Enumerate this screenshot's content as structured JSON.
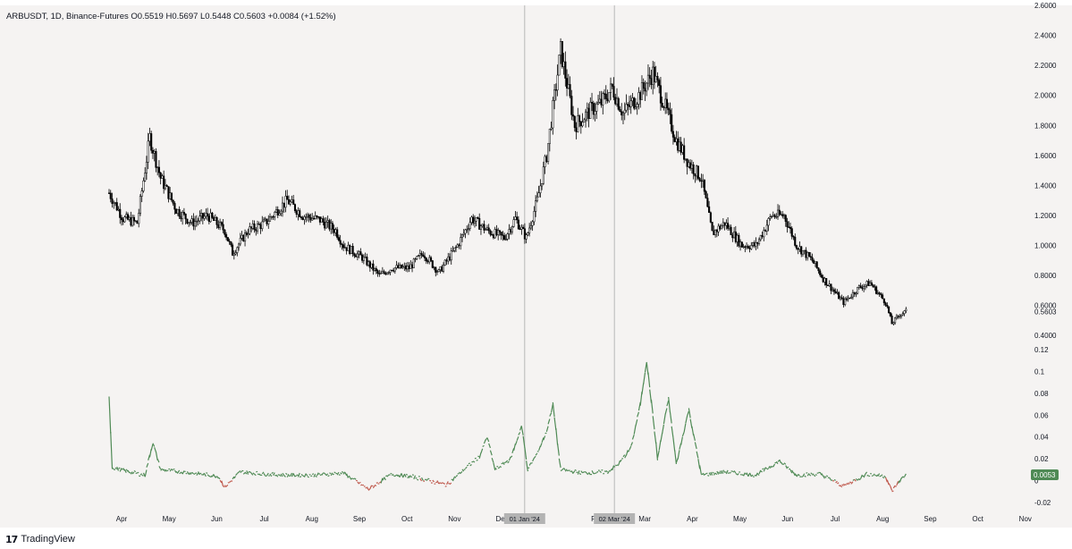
{
  "header": {
    "symbol": "ARBUSDT",
    "interval": "1D",
    "exchange": "Binance-Futures",
    "ohlc_text": "ARBUSDT, 1D, Binance-Futures  O0.5519  H0.5697  L0.5448  C0.5603  +0.0084 (+1.52%)"
  },
  "footer": {
    "brand": "TradingView",
    "logo": "17"
  },
  "colors": {
    "background": "#f5f3f2",
    "candle": "#000000",
    "osc_positive": "#4f8a55",
    "osc_negative": "#c05a4e",
    "crosshair": "#b8b8b8",
    "time_tag_bg": "#b3b3b3",
    "value_tag_bg": "#4f8a55"
  },
  "chart_data": [
    {
      "type": "candlestick",
      "title": "",
      "y_ticks": [
        "2.6000",
        "2.4000",
        "2.2000",
        "2.0000",
        "1.8000",
        "1.6000",
        "1.4000",
        "1.2000",
        "1.0000",
        "0.8000",
        "0.6000",
        "0.4000"
      ],
      "y_tick_values": [
        2.6,
        2.4,
        2.2,
        2.0,
        1.8,
        1.6,
        1.4,
        1.2,
        1.0,
        0.8,
        0.6,
        0.4
      ],
      "ylim": [
        0.3,
        2.6
      ],
      "x_ticks": [
        "Apr",
        "May",
        "Jun",
        "Jul",
        "Aug",
        "Sep",
        "Oct",
        "Nov",
        "Dec",
        "Feb",
        "Mar",
        "Apr",
        "May",
        "Jun",
        "Jul",
        "Aug",
        "Sep",
        "Oct",
        "Nov"
      ],
      "x_tick_months": [
        0,
        1,
        2,
        3,
        4,
        5,
        6,
        7,
        8,
        10,
        11,
        12,
        13,
        14,
        15,
        16,
        17,
        18,
        19
      ],
      "x_start": "2023-03-23",
      "crosshair_labels": [
        "01 Jan '24",
        "02 Mar '24"
      ],
      "crosshair_months": [
        9,
        11
      ],
      "last_price_label": "0.5603",
      "last_price": 0.5603,
      "approx_close_path": [
        [
          "2023-03-23",
          1.35
        ],
        [
          "2023-04-01",
          1.18
        ],
        [
          "2023-04-10",
          1.15
        ],
        [
          "2023-04-18",
          1.72
        ],
        [
          "2023-04-25",
          1.45
        ],
        [
          "2023-05-05",
          1.24
        ],
        [
          "2023-05-15",
          1.15
        ],
        [
          "2023-05-25",
          1.2
        ],
        [
          "2023-06-05",
          1.1
        ],
        [
          "2023-06-10",
          0.95
        ],
        [
          "2023-06-20",
          1.1
        ],
        [
          "2023-07-01",
          1.15
        ],
        [
          "2023-07-10",
          1.25
        ],
        [
          "2023-07-15",
          1.3
        ],
        [
          "2023-07-25",
          1.2
        ],
        [
          "2023-08-05",
          1.17
        ],
        [
          "2023-08-15",
          1.1
        ],
        [
          "2023-08-20",
          1.0
        ],
        [
          "2023-09-01",
          0.92
        ],
        [
          "2023-09-12",
          0.8
        ],
        [
          "2023-09-20",
          0.85
        ],
        [
          "2023-10-01",
          0.85
        ],
        [
          "2023-10-10",
          0.95
        ],
        [
          "2023-10-20",
          0.82
        ],
        [
          "2023-11-01",
          1.0
        ],
        [
          "2023-11-10",
          1.18
        ],
        [
          "2023-11-20",
          1.1
        ],
        [
          "2023-12-01",
          1.05
        ],
        [
          "2023-12-08",
          1.18
        ],
        [
          "2023-12-15",
          1.05
        ],
        [
          "2023-12-22",
          1.3
        ],
        [
          "2023-12-28",
          1.6
        ],
        [
          "2024-01-06",
          2.3
        ],
        [
          "2024-01-15",
          1.8
        ],
        [
          "2024-01-25",
          1.9
        ],
        [
          "2024-02-01",
          1.95
        ],
        [
          "2024-02-08",
          2.05
        ],
        [
          "2024-02-15",
          1.88
        ],
        [
          "2024-02-25",
          2.0
        ],
        [
          "2024-03-05",
          2.15
        ],
        [
          "2024-03-12",
          1.95
        ],
        [
          "2024-03-20",
          1.7
        ],
        [
          "2024-03-28",
          1.55
        ],
        [
          "2024-04-05",
          1.45
        ],
        [
          "2024-04-12",
          1.08
        ],
        [
          "2024-04-20",
          1.15
        ],
        [
          "2024-05-01",
          1.0
        ],
        [
          "2024-05-10",
          1.0
        ],
        [
          "2024-05-20",
          1.2
        ],
        [
          "2024-05-28",
          1.2
        ],
        [
          "2024-06-05",
          1.0
        ],
        [
          "2024-06-15",
          0.9
        ],
        [
          "2024-06-22",
          0.78
        ],
        [
          "2024-07-05",
          0.62
        ],
        [
          "2024-07-15",
          0.72
        ],
        [
          "2024-07-22",
          0.75
        ],
        [
          "2024-08-01",
          0.62
        ],
        [
          "2024-08-05",
          0.48
        ],
        [
          "2024-08-10",
          0.54
        ],
        [
          "2024-08-14",
          0.56
        ]
      ]
    },
    {
      "type": "line",
      "title": "",
      "y_ticks": [
        "0.12",
        "0.1",
        "0.08",
        "0.06",
        "0.04",
        "0.02",
        "0",
        "-0.02"
      ],
      "y_tick_values": [
        0.12,
        0.1,
        0.08,
        0.06,
        0.04,
        0.02,
        0,
        -0.02
      ],
      "ylim": [
        -0.025,
        0.125
      ],
      "last_value_label": "0.0053",
      "last_value": 0.0053,
      "approx_path": [
        [
          "2023-03-23",
          0.078
        ],
        [
          "2023-03-25",
          0.012
        ],
        [
          "2023-04-05",
          0.008
        ],
        [
          "2023-04-15",
          0.005
        ],
        [
          "2023-04-20",
          0.035
        ],
        [
          "2023-04-25",
          0.01
        ],
        [
          "2023-05-15",
          0.007
        ],
        [
          "2023-06-01",
          0.004
        ],
        [
          "2023-06-05",
          -0.006
        ],
        [
          "2023-06-15",
          0.008
        ],
        [
          "2023-07-01",
          0.006
        ],
        [
          "2023-07-15",
          0.005
        ],
        [
          "2023-08-01",
          0.005
        ],
        [
          "2023-08-20",
          0.007
        ],
        [
          "2023-09-05",
          -0.008
        ],
        [
          "2023-09-20",
          0.006
        ],
        [
          "2023-10-05",
          0.003
        ],
        [
          "2023-10-25",
          -0.004
        ],
        [
          "2023-11-05",
          0.01
        ],
        [
          "2023-11-15",
          0.022
        ],
        [
          "2023-11-20",
          0.04
        ],
        [
          "2023-11-25",
          0.01
        ],
        [
          "2023-12-05",
          0.02
        ],
        [
          "2023-12-12",
          0.05
        ],
        [
          "2023-12-16",
          0.01
        ],
        [
          "2023-12-22",
          0.025
        ],
        [
          "2023-12-28",
          0.045
        ],
        [
          "2024-01-01",
          0.07
        ],
        [
          "2024-01-06",
          0.01
        ],
        [
          "2024-01-20",
          0.007
        ],
        [
          "2024-02-05",
          0.008
        ],
        [
          "2024-02-12",
          0.015
        ],
        [
          "2024-02-20",
          0.03
        ],
        [
          "2024-02-26",
          0.07
        ],
        [
          "2024-03-01",
          0.11
        ],
        [
          "2024-03-05",
          0.06
        ],
        [
          "2024-03-08",
          0.02
        ],
        [
          "2024-03-15",
          0.075
        ],
        [
          "2024-03-20",
          0.015
        ],
        [
          "2024-03-28",
          0.065
        ],
        [
          "2024-04-05",
          0.005
        ],
        [
          "2024-04-20",
          0.008
        ],
        [
          "2024-05-10",
          0.005
        ],
        [
          "2024-05-25",
          0.018
        ],
        [
          "2024-06-05",
          0.005
        ],
        [
          "2024-06-20",
          0.006
        ],
        [
          "2024-07-05",
          -0.005
        ],
        [
          "2024-07-20",
          0.006
        ],
        [
          "2024-08-01",
          0.004
        ],
        [
          "2024-08-05",
          -0.01
        ],
        [
          "2024-08-10",
          0.0
        ],
        [
          "2024-08-14",
          0.0053
        ]
      ]
    }
  ]
}
